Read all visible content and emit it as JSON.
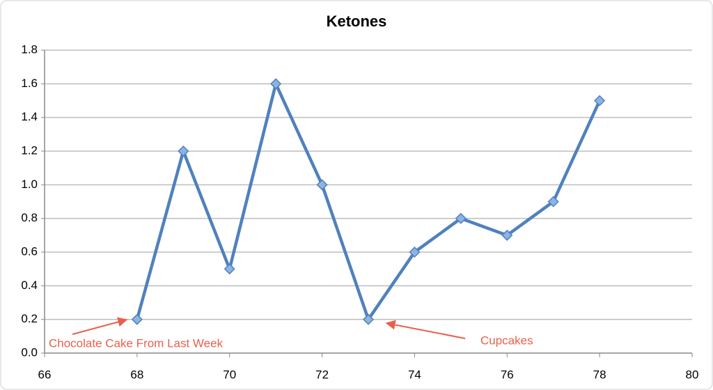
{
  "chart_data": {
    "type": "line",
    "title": "Ketones",
    "x": [
      68,
      69,
      70,
      71,
      72,
      73,
      74,
      75,
      76,
      77,
      78
    ],
    "series": [
      {
        "name": "Ketones",
        "color": "#4f81bd",
        "values": [
          0.2,
          1.2,
          0.5,
          1.6,
          1.0,
          0.2,
          0.6,
          0.8,
          0.7,
          0.9,
          1.5
        ]
      }
    ],
    "xlim": [
      66,
      80
    ],
    "xticks": [
      66,
      68,
      70,
      72,
      74,
      76,
      78,
      80
    ],
    "ylim": [
      0,
      1.8
    ],
    "yticks": [
      {
        "value": 0,
        "label": "0.0"
      },
      0.2,
      0.4,
      0.6,
      0.8,
      {
        "value": 1,
        "label": "1.0"
      },
      1.2,
      1.4,
      1.6,
      1.8
    ],
    "grid": true,
    "annotations": [
      "Chocolate Cake From Last Week",
      "Cupcakes"
    ]
  }
}
